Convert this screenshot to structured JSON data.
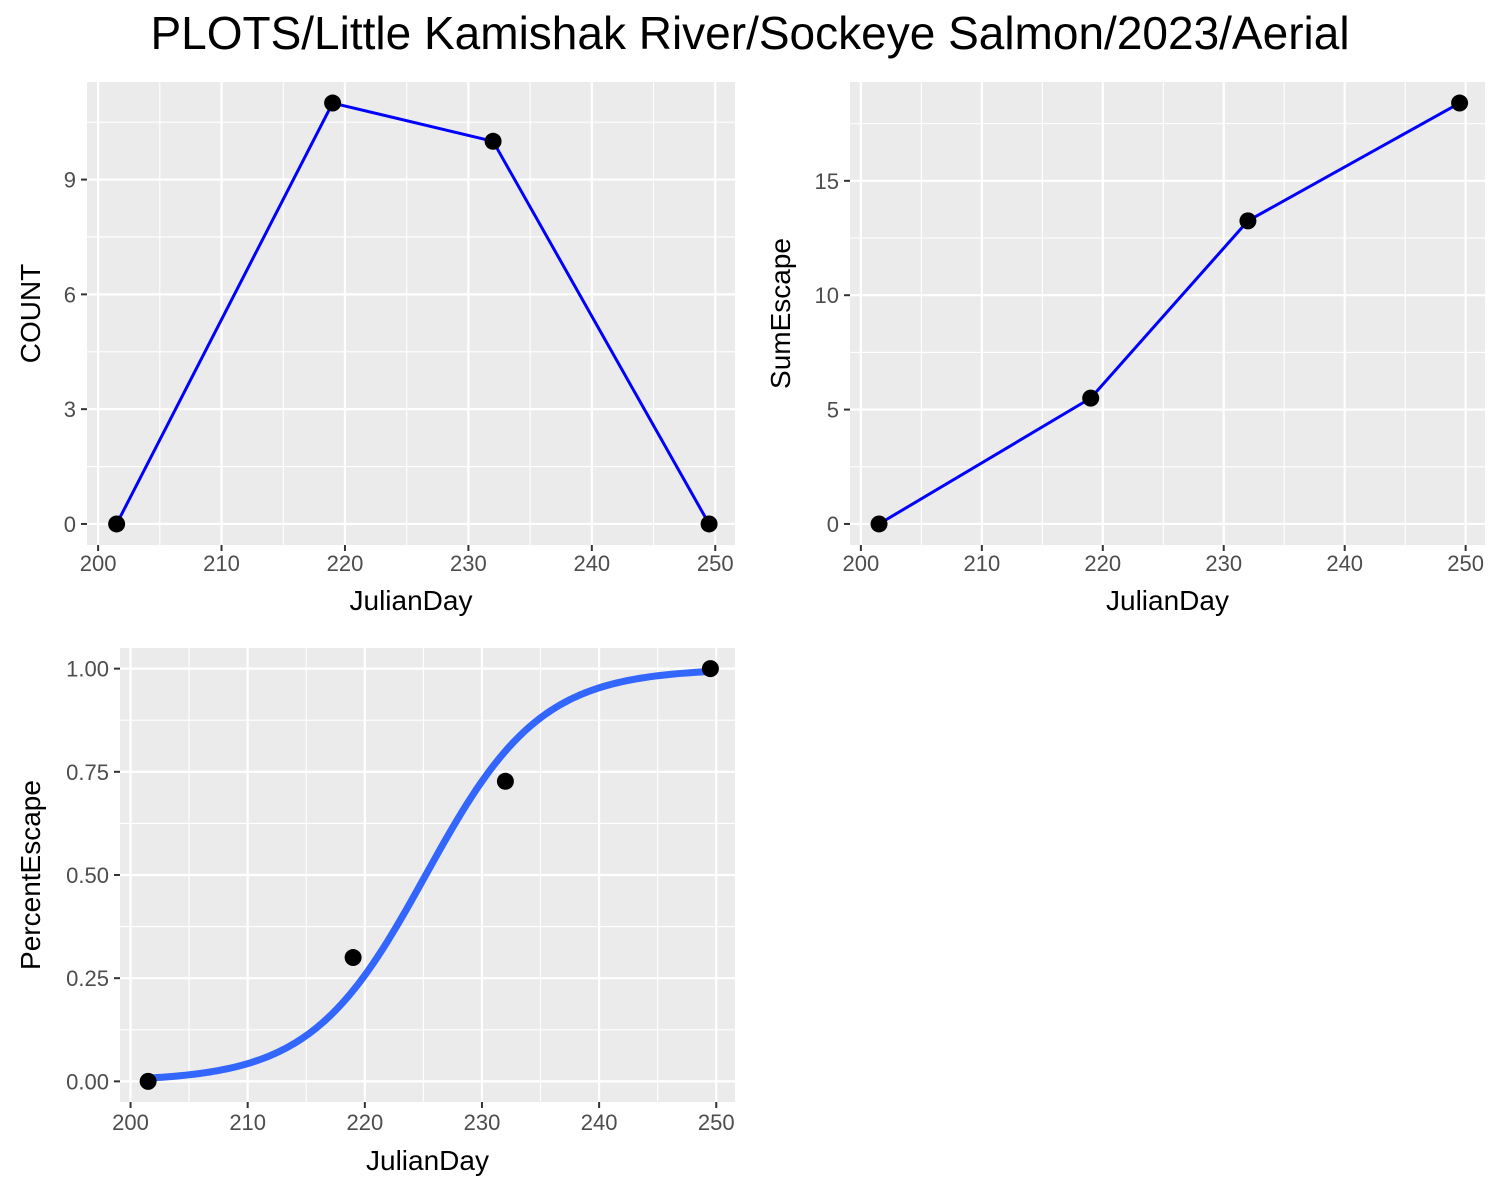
{
  "title": "PLOTS/Little Kamishak River/Sockeye Salmon/2023/Aerial",
  "chart_data": [
    {
      "id": "count-panel",
      "type": "line",
      "xlabel": "JulianDay",
      "ylabel": "COUNT",
      "xlim": [
        199.1,
        251.6
      ],
      "ylim": [
        -0.55,
        11.55
      ],
      "xticks": [
        200,
        210,
        220,
        230,
        240,
        250
      ],
      "yticks": [
        0,
        3,
        6,
        9
      ],
      "xtick_labels": [
        "200",
        "210",
        "220",
        "230",
        "240",
        "250"
      ],
      "ytick_labels": [
        "0",
        "3",
        "6",
        "9"
      ],
      "grid": true,
      "line_color": "#0000ff",
      "point_color": "#000000",
      "series": [
        {
          "x": [
            201.5,
            219,
            232,
            249.5
          ],
          "y": [
            0,
            11,
            10,
            0
          ]
        }
      ]
    },
    {
      "id": "sumescape-panel",
      "type": "line",
      "xlabel": "JulianDay",
      "ylabel": "SumEscape",
      "xlim": [
        199.1,
        251.6
      ],
      "ylim": [
        -0.92,
        19.32
      ],
      "xticks": [
        200,
        210,
        220,
        230,
        240,
        250
      ],
      "yticks": [
        0,
        5,
        10,
        15
      ],
      "xtick_labels": [
        "200",
        "210",
        "220",
        "230",
        "240",
        "250"
      ],
      "ytick_labels": [
        "0",
        "5",
        "10",
        "15"
      ],
      "grid": true,
      "line_color": "#0000ff",
      "point_color": "#000000",
      "series": [
        {
          "x": [
            201.5,
            219,
            232,
            249.5
          ],
          "y": [
            0,
            5.5,
            13.25,
            18.4
          ]
        }
      ]
    },
    {
      "id": "percentescape-panel",
      "type": "scatter",
      "xlabel": "JulianDay",
      "ylabel": "PercentEscape",
      "xlim": [
        199.1,
        251.6
      ],
      "ylim": [
        -0.05,
        1.05
      ],
      "xticks": [
        200,
        210,
        220,
        230,
        240,
        250
      ],
      "yticks": [
        0,
        0.25,
        0.5,
        0.75,
        1
      ],
      "xtick_labels": [
        "200",
        "210",
        "220",
        "230",
        "240",
        "250"
      ],
      "ytick_labels": [
        "0.00",
        "0.25",
        "0.50",
        "0.75",
        "1.00"
      ],
      "grid": true,
      "point_color": "#000000",
      "series": [
        {
          "x": [
            201.5,
            219,
            232,
            249.5
          ],
          "y": [
            0,
            0.3,
            0.727,
            1.0
          ]
        }
      ],
      "fit_color": "#3366ff",
      "fit": {
        "type": "logistic",
        "midpoint": 225.2,
        "scale": 4.9,
        "x_range": [
          201.5,
          249.5
        ]
      }
    }
  ]
}
